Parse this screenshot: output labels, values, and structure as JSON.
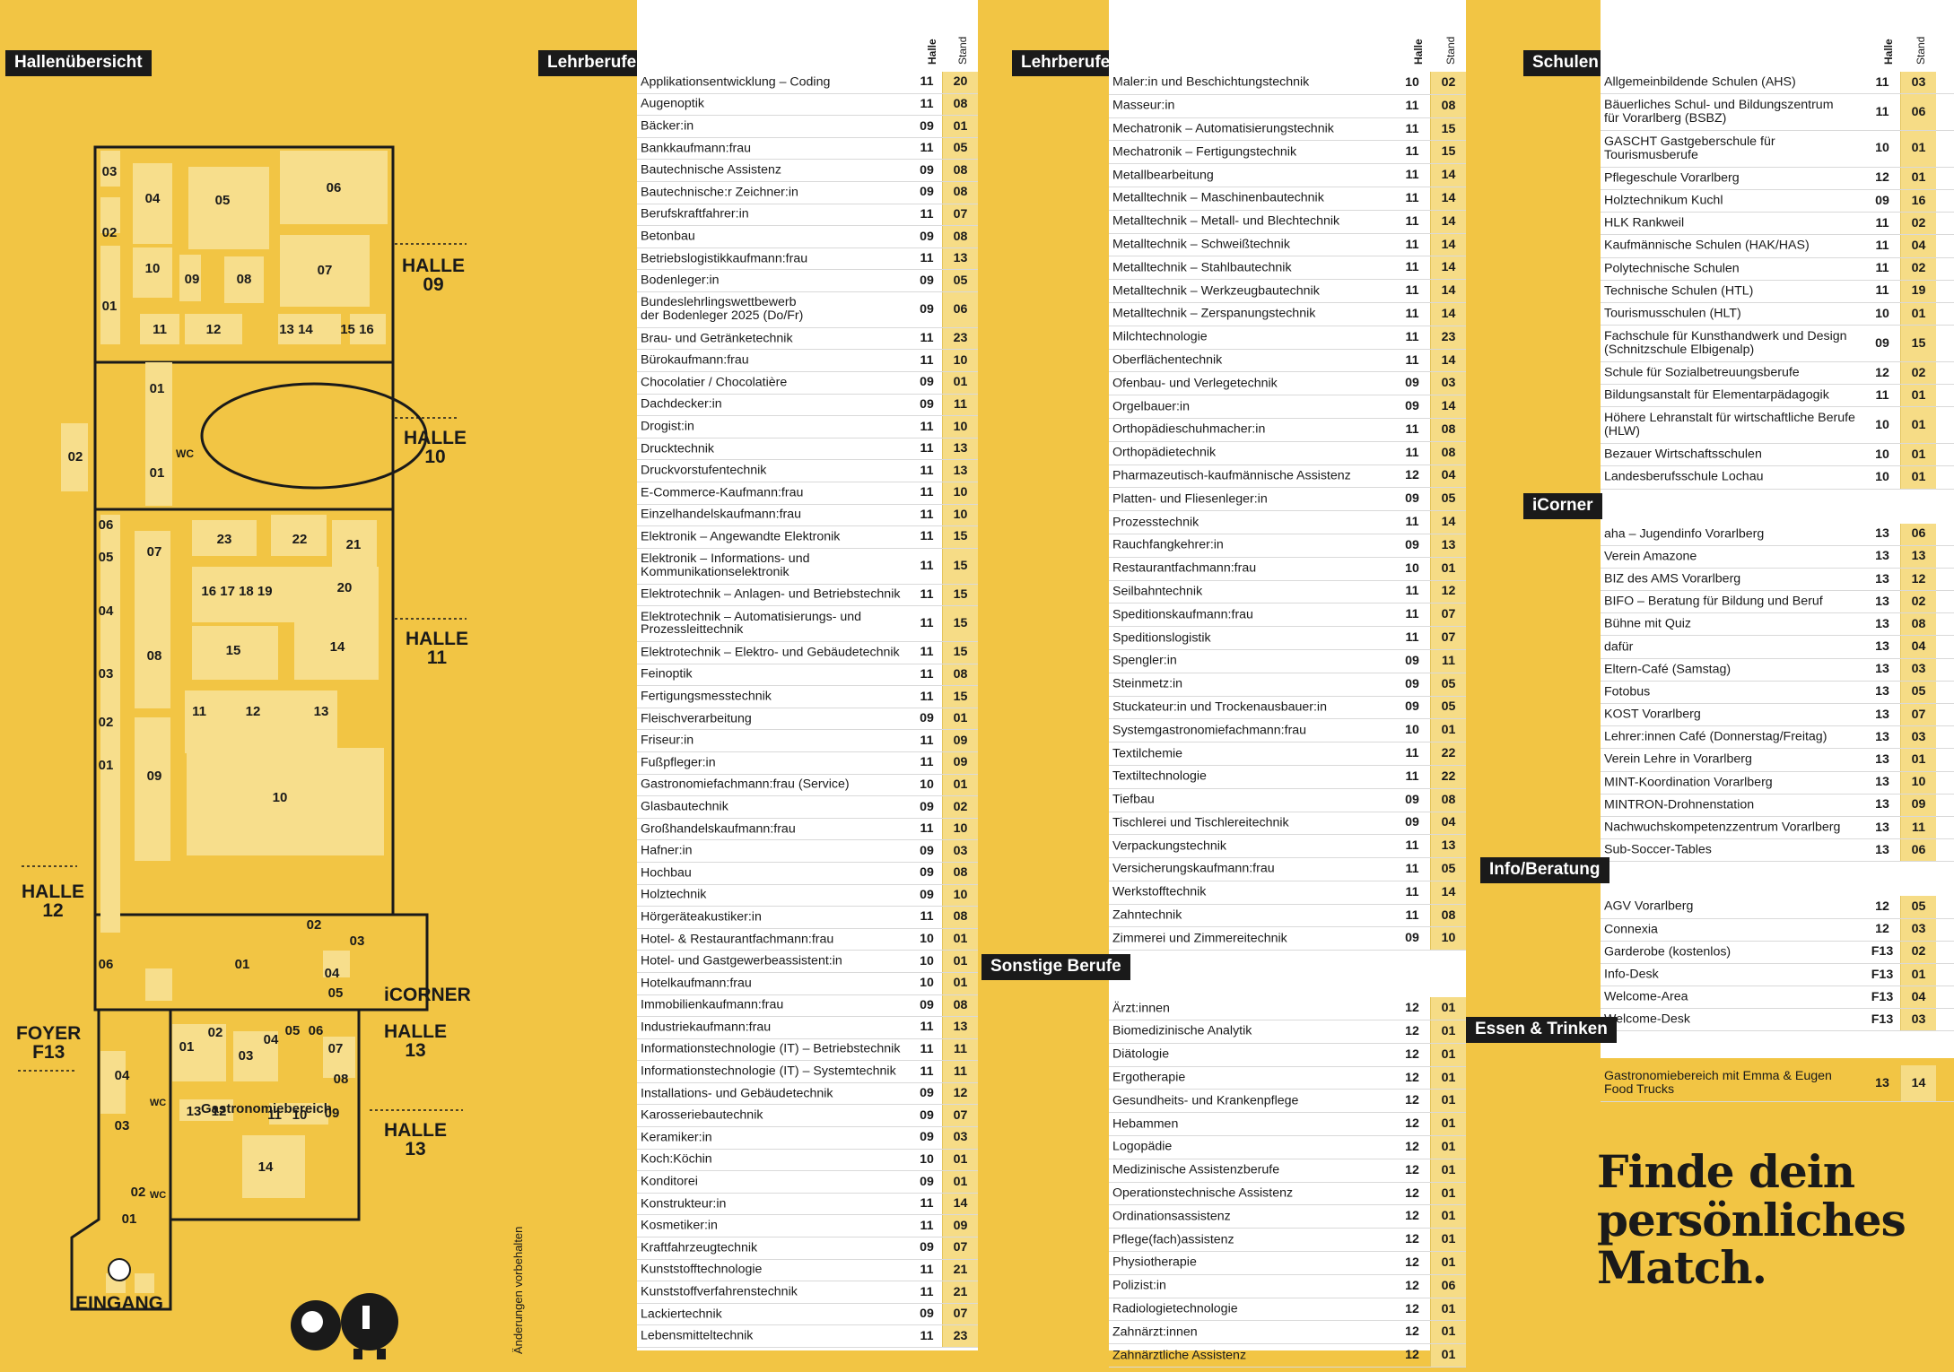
{
  "tags": {
    "hall": "Hallenübersicht",
    "col1": "Lehrberufe",
    "col2": "Lehrberufe",
    "col2b": "Sonstige Berufe",
    "col3": "Schulen",
    "col3b": "iCorner",
    "col3c": "Info/Beratung",
    "col3d": "Essen & Trinken"
  },
  "col_headers": {
    "halle": "Halle",
    "stand": "Stand"
  },
  "plan": {
    "halle09": [
      "HALLE",
      "09"
    ],
    "halle10": [
      "HALLE",
      "10"
    ],
    "halle11": [
      "HALLE",
      "11"
    ],
    "halle12": [
      "HALLE",
      "12"
    ],
    "halle13a": [
      "HALLE",
      "13"
    ],
    "halle13b": [
      "HALLE",
      "13"
    ],
    "icorner": "iCORNER",
    "foyer": [
      "FOYER",
      "F13"
    ],
    "eingang": "EINGANG",
    "gastro": "Gastronomiebereich",
    "wc": "WC"
  },
  "note": "Änderungen vorbehalten",
  "match": [
    "Finde dein",
    "persönliches",
    "Match."
  ],
  "col1": [
    [
      "Applikationsentwicklung – Coding",
      "11",
      "20"
    ],
    [
      "Augenoptik",
      "11",
      "08"
    ],
    [
      "Bäcker:in",
      "09",
      "01"
    ],
    [
      "Bankkaufmann:frau",
      "11",
      "05"
    ],
    [
      "Bautechnische Assistenz",
      "09",
      "08"
    ],
    [
      "Bautechnische:r Zeichner:in",
      "09",
      "08"
    ],
    [
      "Berufskraftfahrer:in",
      "11",
      "07"
    ],
    [
      "Betonbau",
      "09",
      "08"
    ],
    [
      "Betriebslogistikkaufmann:frau",
      "11",
      "13"
    ],
    [
      "Bodenleger:in",
      "09",
      "05"
    ],
    [
      "Bundeslehrlingswettbewerb\nder Bodenleger 2025 (Do/Fr)",
      "09",
      "06"
    ],
    [
      "Brau- und Getränketechnik",
      "11",
      "23"
    ],
    [
      "Bürokaufmann:frau",
      "11",
      "10"
    ],
    [
      "Chocolatier / Chocolatière",
      "09",
      "01"
    ],
    [
      "Dachdecker:in",
      "09",
      "11"
    ],
    [
      "Drogist:in",
      "11",
      "10"
    ],
    [
      "Drucktechnik",
      "11",
      "13"
    ],
    [
      "Druckvorstufentechnik",
      "11",
      "13"
    ],
    [
      "E-Commerce-Kaufmann:frau",
      "11",
      "10"
    ],
    [
      "Einzelhandelskaufmann:frau",
      "11",
      "10"
    ],
    [
      "Elektronik – Angewandte Elektronik",
      "11",
      "15"
    ],
    [
      "Elektronik – Informations- und\nKommunikationselektronik",
      "11",
      "15"
    ],
    [
      "Elektrotechnik – Anlagen- und Betriebstechnik",
      "11",
      "15"
    ],
    [
      "Elektrotechnik – Automatisierungs- und\nProzessleittechnik",
      "11",
      "15"
    ],
    [
      "Elektrotechnik – Elektro- und Gebäudetechnik",
      "11",
      "15"
    ],
    [
      "Feinoptik",
      "11",
      "08"
    ],
    [
      "Fertigungsmesstechnik",
      "11",
      "15"
    ],
    [
      "Fleischverarbeitung",
      "09",
      "01"
    ],
    [
      "Friseur:in",
      "11",
      "09"
    ],
    [
      "Fußpfleger:in",
      "11",
      "09"
    ],
    [
      "Gastronomiefachmann:frau (Service)",
      "10",
      "01"
    ],
    [
      "Glasbautechnik",
      "09",
      "02"
    ],
    [
      "Großhandelskaufmann:frau",
      "11",
      "10"
    ],
    [
      "Hafner:in",
      "09",
      "03"
    ],
    [
      "Hochbau",
      "09",
      "08"
    ],
    [
      "Holztechnik",
      "09",
      "10"
    ],
    [
      "Hörgeräteakustiker:in",
      "11",
      "08"
    ],
    [
      "Hotel- & Restaurantfachmann:frau",
      "10",
      "01"
    ],
    [
      "Hotel- und Gastgewerbeassistent:in",
      "10",
      "01"
    ],
    [
      "Hotelkaufmann:frau",
      "10",
      "01"
    ],
    [
      "Immobilienkaufmann:frau",
      "09",
      "08"
    ],
    [
      "Industriekaufmann:frau",
      "11",
      "13"
    ],
    [
      "Informationstechnologie (IT) – Betriebstechnik",
      "11",
      "11"
    ],
    [
      "Informationstechnologie (IT) – Systemtechnik",
      "11",
      "11"
    ],
    [
      "Installations- und Gebäudetechnik",
      "09",
      "12"
    ],
    [
      "Karosseriebautechnik",
      "09",
      "07"
    ],
    [
      "Keramiker:in",
      "09",
      "03"
    ],
    [
      "Koch:Köchin",
      "10",
      "01"
    ],
    [
      "Konditorei",
      "09",
      "01"
    ],
    [
      "Konstrukteur:in",
      "11",
      "14"
    ],
    [
      "Kosmetiker:in",
      "11",
      "09"
    ],
    [
      "Kraftfahrzeugtechnik",
      "09",
      "07"
    ],
    [
      "Kunststofftechnologie",
      "11",
      "21"
    ],
    [
      "Kunststoffverfahrenstechnik",
      "11",
      "21"
    ],
    [
      "Lackiertechnik",
      "09",
      "07"
    ],
    [
      "Lebensmitteltechnik",
      "11",
      "23"
    ]
  ],
  "col2": [
    [
      "Maler:in und Beschichtungstechnik",
      "10",
      "02"
    ],
    [
      "Masseur:in",
      "11",
      "08"
    ],
    [
      "Mechatronik – Automatisierungstechnik",
      "11",
      "15"
    ],
    [
      "Mechatronik – Fertigungstechnik",
      "11",
      "15"
    ],
    [
      "Metallbearbeitung",
      "11",
      "14"
    ],
    [
      "Metalltechnik – Maschinenbautechnik",
      "11",
      "14"
    ],
    [
      "Metalltechnik – Metall- und Blechtechnik",
      "11",
      "14"
    ],
    [
      "Metalltechnik – Schweißtechnik",
      "11",
      "14"
    ],
    [
      "Metalltechnik – Stahlbautechnik",
      "11",
      "14"
    ],
    [
      "Metalltechnik – Werkzeugbautechnik",
      "11",
      "14"
    ],
    [
      "Metalltechnik – Zerspanungstechnik",
      "11",
      "14"
    ],
    [
      "Milchtechnologie",
      "11",
      "23"
    ],
    [
      "Oberflächentechnik",
      "11",
      "14"
    ],
    [
      "Ofenbau- und Verlegetechnik",
      "09",
      "03"
    ],
    [
      "Orgelbauer:in",
      "09",
      "14"
    ],
    [
      "Orthopädieschuhmacher:in",
      "11",
      "08"
    ],
    [
      "Orthopädietechnik",
      "11",
      "08"
    ],
    [
      "Pharmazeutisch-kaufmännische Assistenz",
      "12",
      "04"
    ],
    [
      "Platten- und Fliesenleger:in",
      "09",
      "05"
    ],
    [
      "Prozesstechnik",
      "11",
      "14"
    ],
    [
      "Rauchfangkehrer:in",
      "09",
      "13"
    ],
    [
      "Restaurantfachmann:frau",
      "10",
      "01"
    ],
    [
      "Seilbahntechnik",
      "11",
      "12"
    ],
    [
      "Speditionskaufmann:frau",
      "11",
      "07"
    ],
    [
      "Speditionslogistik",
      "11",
      "07"
    ],
    [
      "Spengler:in",
      "09",
      "11"
    ],
    [
      "Steinmetz:in",
      "09",
      "05"
    ],
    [
      "Stuckateur:in und Trockenausbauer:in",
      "09",
      "05"
    ],
    [
      "Systemgastronomiefachmann:frau",
      "10",
      "01"
    ],
    [
      "Textilchemie",
      "11",
      "22"
    ],
    [
      "Textiltechnologie",
      "11",
      "22"
    ],
    [
      "Tiefbau",
      "09",
      "08"
    ],
    [
      "Tischlerei und Tischlereitechnik",
      "09",
      "04"
    ],
    [
      "Verpackungstechnik",
      "11",
      "13"
    ],
    [
      "Versicherungskaufmann:frau",
      "11",
      "05"
    ],
    [
      "Werkstofftechnik",
      "11",
      "14"
    ],
    [
      "Zahntechnik",
      "11",
      "08"
    ],
    [
      "Zimmerei und Zimmereitechnik",
      "09",
      "10"
    ]
  ],
  "col2b": [
    [
      "Ärzt:innen",
      "12",
      "01"
    ],
    [
      "Biomedizinische Analytik",
      "12",
      "01"
    ],
    [
      "Diätologie",
      "12",
      "01"
    ],
    [
      "Ergotherapie",
      "12",
      "01"
    ],
    [
      "Gesundheits- und Krankenpflege",
      "12",
      "01"
    ],
    [
      "Hebammen",
      "12",
      "01"
    ],
    [
      "Logopädie",
      "12",
      "01"
    ],
    [
      "Medizinische Assistenzberufe",
      "12",
      "01"
    ],
    [
      "Operationstechnische Assistenz",
      "12",
      "01"
    ],
    [
      "Ordinationsassistenz",
      "12",
      "01"
    ],
    [
      "Pflege(fach)assistenz",
      "12",
      "01"
    ],
    [
      "Physiotherapie",
      "12",
      "01"
    ],
    [
      "Polizist:in",
      "12",
      "06"
    ],
    [
      "Radiologietechnologie",
      "12",
      "01"
    ],
    [
      "Zahnärzt:innen",
      "12",
      "01"
    ],
    [
      "Zahnärztliche Assistenz",
      "12",
      "01"
    ]
  ],
  "col3": [
    [
      "Allgemeinbildende Schulen (AHS)",
      "11",
      "03"
    ],
    [
      "Bäuerliches Schul- und Bildungszentrum\nfür Vorarlberg (BSBZ)",
      "11",
      "06"
    ],
    [
      "GASCHT Gastgeberschule für\nTourismusberufe",
      "10",
      "01"
    ],
    [
      "Pflegeschule Vorarlberg",
      "12",
      "01"
    ],
    [
      "Holztechnikum Kuchl",
      "09",
      "16"
    ],
    [
      "HLK Rankweil",
      "11",
      "02"
    ],
    [
      "Kaufmännische Schulen (HAK/HAS)",
      "11",
      "04"
    ],
    [
      "Polytechnische Schulen",
      "11",
      "02"
    ],
    [
      "Technische Schulen (HTL)",
      "11",
      "19"
    ],
    [
      "Tourismusschulen (HLT)",
      "10",
      "01"
    ],
    [
      "Fachschule für Kunsthandwerk und Design\n(Schnitzschule Elbigenalp)",
      "09",
      "15"
    ],
    [
      "Schule für Sozialbetreuungsberufe",
      "12",
      "02"
    ],
    [
      "Bildungsanstalt für Elementarpädagogik",
      "11",
      "01"
    ],
    [
      "Höhere Lehranstalt für wirtschaftliche Berufe\n(HLW)",
      "10",
      "01"
    ],
    [
      "Bezauer Wirtschaftsschulen",
      "10",
      "01"
    ],
    [
      "Landesberufsschule Lochau",
      "10",
      "01"
    ]
  ],
  "col3b": [
    [
      "aha – Jugendinfo Vorarlberg",
      "13",
      "06"
    ],
    [
      "Verein Amazone",
      "13",
      "13"
    ],
    [
      "BIZ des AMS Vorarlberg",
      "13",
      "12"
    ],
    [
      "BIFO – Beratung für Bildung und Beruf",
      "13",
      "02"
    ],
    [
      "Bühne mit Quiz",
      "13",
      "08"
    ],
    [
      "dafür",
      "13",
      "04"
    ],
    [
      "Eltern-Café (Samstag)",
      "13",
      "03"
    ],
    [
      "Fotobus",
      "13",
      "05"
    ],
    [
      "KOST Vorarlberg",
      "13",
      "07"
    ],
    [
      "Lehrer:innen Café (Donnerstag/Freitag)",
      "13",
      "03"
    ],
    [
      "Verein Lehre in Vorarlberg",
      "13",
      "01"
    ],
    [
      "MINT-Koordination Vorarlberg",
      "13",
      "10"
    ],
    [
      "MINTRON-Drohnenstation",
      "13",
      "09"
    ],
    [
      "Nachwuchskompetenzzentrum Vorarlberg",
      "13",
      "11"
    ],
    [
      "Sub-Soccer-Tables",
      "13",
      "06"
    ]
  ],
  "col3c": [
    [
      "AGV Vorarlberg",
      "12",
      "05"
    ],
    [
      "Connexia",
      "12",
      "03"
    ],
    [
      "Garderobe (kostenlos)",
      "F13",
      "02"
    ],
    [
      "Info-Desk",
      "F13",
      "01"
    ],
    [
      "Welcome-Area",
      "F13",
      "04"
    ],
    [
      "Welcome-Desk",
      "F13",
      "03"
    ]
  ],
  "col3d": [
    [
      "Gastronomiebereich mit Emma & Eugen\nFood Trucks",
      "13",
      "14"
    ]
  ],
  "colors": {
    "background": "#f2c544",
    "light": "#f7de8c",
    "stand": "#f6dc86"
  }
}
